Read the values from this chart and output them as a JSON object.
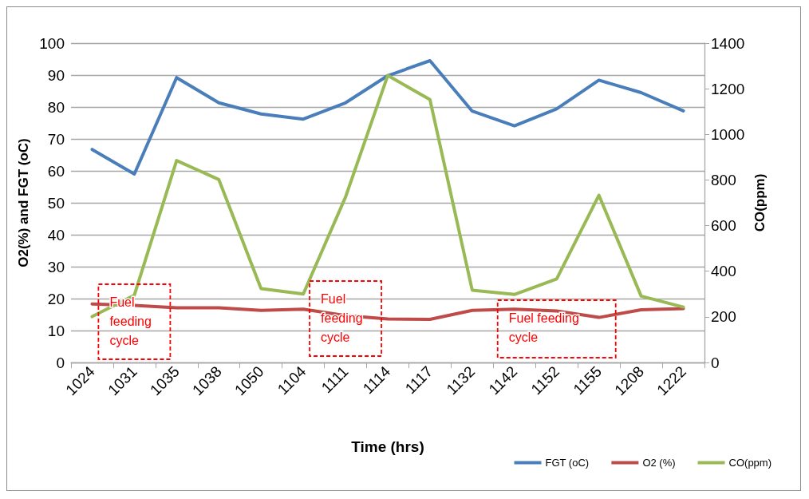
{
  "chart_data": {
    "type": "line",
    "xlabel": "Time (hrs)",
    "ylabel": "O2(%) and FGT (oC)",
    "y2label": "CO(ppm)",
    "categories": [
      "1024",
      "1031",
      "1035",
      "1038",
      "1050",
      "1104",
      "1111",
      "1114",
      "1117",
      "1132",
      "1142",
      "1152",
      "1155",
      "1208",
      "1222"
    ],
    "series": [
      {
        "name": "FGT (oC)",
        "color": "#4a7ebb",
        "values": [
          66.7,
          59,
          89.2,
          81.3,
          77.8,
          76.2,
          81.3,
          89.8,
          94.5,
          78.7,
          74.1,
          79.4,
          88.4,
          84.5,
          78.8
        ]
      },
      {
        "name": "O2 (%)",
        "color": "#be4b48",
        "values": [
          18.3,
          17.9,
          17.1,
          17.1,
          16.3,
          16.7,
          14.7,
          13.6,
          13.5,
          16.3,
          16.7,
          16.1,
          14.1,
          16.5,
          16.9
        ]
      },
      {
        "name": "CO(ppm)",
        "color": "#98b954",
        "axis": "y2",
        "values": [
          201,
          295,
          885,
          802,
          324,
          300,
          725,
          1258,
          1152,
          317,
          298,
          366,
          733,
          291,
          243
        ]
      }
    ],
    "ylim": [
      0,
      100
    ],
    "yticks": [
      0,
      10,
      20,
      30,
      40,
      50,
      60,
      70,
      80,
      90,
      100
    ],
    "y2lim": [
      0,
      1400
    ],
    "y2ticks": [
      0,
      200,
      400,
      600,
      800,
      1000,
      1200,
      1400
    ],
    "grid": "y",
    "legend": "bottom right",
    "marker": "none",
    "line_style": "solid",
    "annotations": [
      "Fuel feeding cycle",
      "Fuel feeding cycle",
      "Fuel feeding cycle"
    ]
  }
}
